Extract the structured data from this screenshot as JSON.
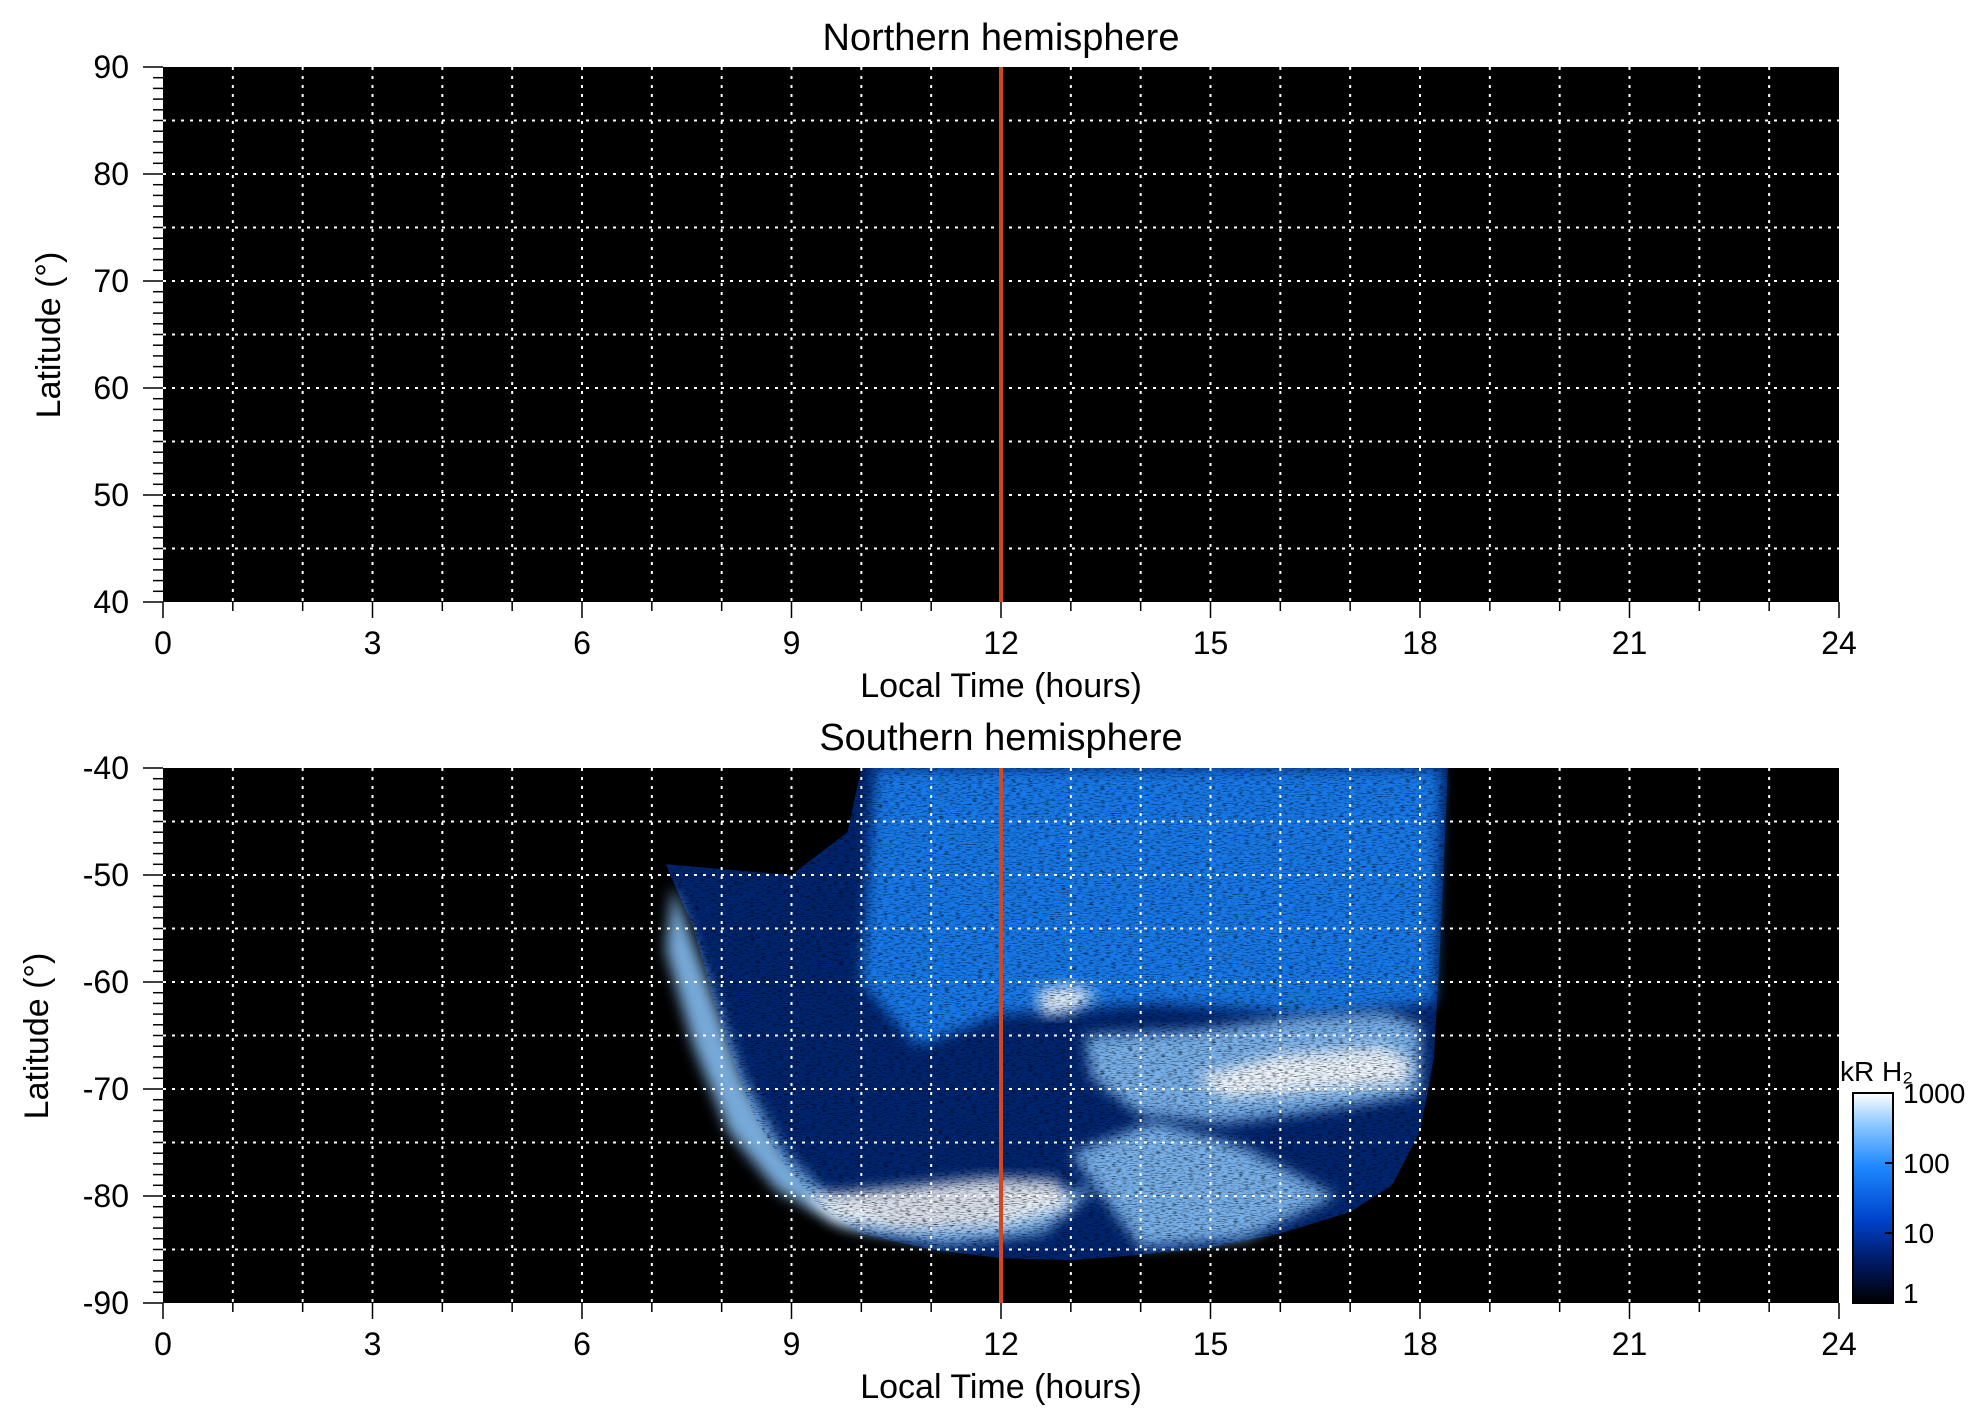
{
  "chart_data": [
    {
      "type": "heatmap",
      "title": "Northern hemisphere",
      "xlabel": "Local Time (hours)",
      "ylabel": "Latitude (°)",
      "xlim": [
        0,
        24
      ],
      "ylim": [
        40,
        90
      ],
      "xticks": [
        "0",
        "3",
        "6",
        "9",
        "12",
        "15",
        "18",
        "21",
        "24"
      ],
      "yticks": [
        "40",
        "50",
        "60",
        "70",
        "80",
        "90"
      ],
      "grid": true,
      "grid_x_step_hours": 1,
      "grid_y_step_deg": 5,
      "reference_line": {
        "x": 12,
        "color": "#d2471f"
      },
      "background_color": "#000000",
      "emission_regions": []
    },
    {
      "type": "heatmap",
      "title": "Southern hemisphere",
      "xlabel": "Local Time (hours)",
      "ylabel": "Latitude (°)",
      "xlim": [
        0,
        24
      ],
      "ylim": [
        -90,
        -40
      ],
      "xticks": [
        "0",
        "3",
        "6",
        "9",
        "12",
        "15",
        "18",
        "21",
        "24"
      ],
      "yticks": [
        "-90",
        "-80",
        "-70",
        "-60",
        "-50",
        "-40"
      ],
      "grid": true,
      "grid_x_step_hours": 1,
      "grid_y_step_deg": 5,
      "reference_line": {
        "x": 12,
        "color": "#d2471f"
      },
      "background_color": "#000000",
      "scale": "log",
      "colorbar": {
        "label": "kR H₂",
        "ticks": [
          "1",
          "10",
          "100",
          "1000"
        ],
        "range": [
          1,
          1000
        ],
        "colors": [
          "#000000",
          "#001a66",
          "#0044cc",
          "#1e88ff",
          "#8cc8ff",
          "#ffffff"
        ]
      },
      "emission_regions": [
        {
          "name": "observed-region-outline",
          "points": [
            [
              7.2,
              -49
            ],
            [
              7.6,
              -55
            ],
            [
              7.9,
              -62
            ],
            [
              8.2,
              -68
            ],
            [
              8.5,
              -73
            ],
            [
              8.9,
              -77
            ],
            [
              9.4,
              -81
            ],
            [
              10.0,
              -83.5
            ],
            [
              11.0,
              -85
            ],
            [
              12.0,
              -85.8
            ],
            [
              13.0,
              -86
            ],
            [
              14.0,
              -85.5
            ],
            [
              15.0,
              -84.8
            ],
            [
              16.0,
              -83.5
            ],
            [
              17.0,
              -81.5
            ],
            [
              17.6,
              -79
            ],
            [
              18.0,
              -74
            ],
            [
              18.2,
              -67
            ],
            [
              18.3,
              -55
            ],
            [
              18.4,
              -40
            ],
            [
              10.0,
              -40
            ],
            [
              9.8,
              -46
            ],
            [
              9.0,
              -50
            ]
          ],
          "level": 8
        },
        {
          "name": "noisy-dayside-emission",
          "points": [
            [
              10.2,
              -40
            ],
            [
              18.3,
              -40
            ],
            [
              18.2,
              -62
            ],
            [
              16.5,
              -63
            ],
            [
              14.2,
              -62
            ],
            [
              12.0,
              -63
            ],
            [
              10.8,
              -66
            ],
            [
              10.0,
              -60
            ]
          ],
          "level": 40
        },
        {
          "name": "dawn-oval-arc",
          "points": [
            [
              7.3,
              -51
            ],
            [
              7.8,
              -60
            ],
            [
              8.3,
              -69
            ],
            [
              8.9,
              -76
            ],
            [
              9.6,
              -80.5
            ],
            [
              10.6,
              -82.5
            ],
            [
              11.8,
              -82
            ],
            [
              12.6,
              -80
            ],
            [
              13.4,
              -79
            ],
            [
              12.6,
              -83.5
            ],
            [
              11.2,
              -84.6
            ],
            [
              9.8,
              -83
            ],
            [
              8.8,
              -79.5
            ],
            [
              8.1,
              -74
            ],
            [
              7.6,
              -66
            ],
            [
              7.2,
              -57
            ]
          ],
          "level": 300
        },
        {
          "name": "bright-southern-oval",
          "points": [
            [
              9.2,
              -80
            ],
            [
              10.5,
              -79.2
            ],
            [
              11.8,
              -78.3
            ],
            [
              12.8,
              -78.5
            ],
            [
              13.0,
              -81
            ],
            [
              12.0,
              -82.8
            ],
            [
              10.6,
              -83.2
            ],
            [
              9.6,
              -82.3
            ]
          ],
          "level": 1000
        },
        {
          "name": "afternoon-oval",
          "points": [
            [
              13.2,
              -65
            ],
            [
              14.8,
              -64.5
            ],
            [
              16.3,
              -63.2
            ],
            [
              17.5,
              -62.8
            ],
            [
              18.0,
              -64
            ],
            [
              18.0,
              -70.5
            ],
            [
              16.6,
              -72
            ],
            [
              15.2,
              -73.2
            ],
            [
              14.0,
              -72.4
            ],
            [
              13.3,
              -69
            ]
          ],
          "level": 500
        },
        {
          "name": "afternoon-oval-core",
          "points": [
            [
              14.8,
              -68.8
            ],
            [
              16.0,
              -66.8
            ],
            [
              17.5,
              -66
            ],
            [
              17.9,
              -67.5
            ],
            [
              17.8,
              -69.5
            ],
            [
              16.4,
              -70.2
            ],
            [
              15.2,
              -70.8
            ]
          ],
          "level": 1000
        },
        {
          "name": "noon-bright-spot",
          "points": [
            [
              12.5,
              -60.8
            ],
            [
              13.0,
              -60.2
            ],
            [
              13.4,
              -61.2
            ],
            [
              13.0,
              -62.8
            ],
            [
              12.6,
              -63.2
            ]
          ],
          "level": 1000
        },
        {
          "name": "nightside-arc",
          "points": [
            [
              13.0,
              -76
            ],
            [
              14.2,
              -73
            ],
            [
              15.5,
              -75.5
            ],
            [
              16.8,
              -80
            ],
            [
              15.5,
              -84
            ],
            [
              14.0,
              -84.8
            ]
          ],
          "level": 150
        }
      ]
    }
  ]
}
